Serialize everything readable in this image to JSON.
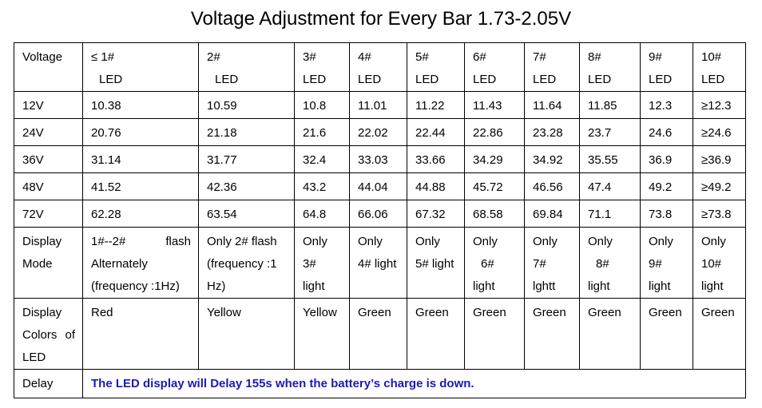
{
  "title": "Voltage Adjustment for Every Bar 1.73-2.05V",
  "header": {
    "label": "Voltage",
    "cols": [
      {
        "n": "≤ 1#",
        "u": "LED"
      },
      {
        "n": "2#",
        "u": "LED"
      },
      {
        "n": "3#",
        "u": "LED"
      },
      {
        "n": "4#",
        "u": "LED"
      },
      {
        "n": "5#",
        "u": "LED"
      },
      {
        "n": "6#",
        "u": "LED"
      },
      {
        "n": "7#",
        "u": "LED"
      },
      {
        "n": "8#",
        "u": "LED"
      },
      {
        "n": "9#",
        "u": "LED"
      },
      {
        "n": "10#",
        "u": "LED"
      }
    ]
  },
  "voltage_rows": [
    {
      "label": "12V",
      "values": [
        "10.38",
        "10.59",
        "10.8",
        "11.01",
        "11.22",
        "11.43",
        "11.64",
        "11.85",
        "12.3",
        "≥12.3"
      ]
    },
    {
      "label": "24V",
      "values": [
        "20.76",
        "21.18",
        "21.6",
        "22.02",
        "22.44",
        "22.86",
        "23.28",
        "23.7",
        "24.6",
        "≥24.6"
      ]
    },
    {
      "label": "36V",
      "values": [
        "31.14",
        "31.77",
        "32.4",
        "33.03",
        "33.66",
        "34.29",
        "34.92",
        "35.55",
        "36.9",
        "≥36.9"
      ]
    },
    {
      "label": "48V",
      "values": [
        "41.52",
        "42.36",
        "43.2",
        "44.04",
        "44.88",
        "45.72",
        "46.56",
        "47.4",
        "49.2",
        "≥49.2"
      ]
    },
    {
      "label": "72V",
      "values": [
        "62.28",
        "63.54",
        "64.8",
        "66.06",
        "67.32",
        "68.58",
        "69.84",
        "71.1",
        "73.8",
        "≥73.8"
      ]
    }
  ],
  "display_mode": {
    "label_1": "Display",
    "label_2": "Mode",
    "c1": {
      "a": "1#--2#",
      "b": "flash",
      "l2": "Alternately",
      "l3": "(frequency :1Hz)"
    },
    "c2": {
      "l1": "Only 2# flash",
      "l2": "(frequency  :1",
      "l3": "Hz)"
    },
    "c3": {
      "l1": "Only",
      "l2": "3#",
      "l3": "light"
    },
    "c4": {
      "l1": "Only",
      "l2": "4# light"
    },
    "c5": {
      "l1": "Only",
      "l2": "5# light"
    },
    "c6": {
      "l1": "Only",
      "l2": "6#",
      "l3": "light"
    },
    "c7": {
      "l1": "Only",
      "l2": "7#",
      "l3": "lghtt"
    },
    "c8": {
      "l1": "Only",
      "l2": "8#",
      "l3": "light"
    },
    "c9": {
      "l1": "Only",
      "l2": "9#",
      "l3": "light"
    },
    "c10": {
      "l1": "Only",
      "l2": "10#",
      "l3": "light"
    }
  },
  "display_colors": {
    "label_1": "Display",
    "label_2a": "Colors",
    "label_2b": "of",
    "label_3": "LED",
    "values": [
      "Red",
      "Yellow",
      "Yellow",
      "Green",
      "Green",
      "Green",
      "Green",
      "Green",
      "Green",
      "Green"
    ]
  },
  "delay": {
    "label": "Delay",
    "note": "The LED display will Delay 155s when the battery’s charge is down."
  },
  "colors": {
    "note_text": "#1a1ab8",
    "border": "#000000"
  }
}
